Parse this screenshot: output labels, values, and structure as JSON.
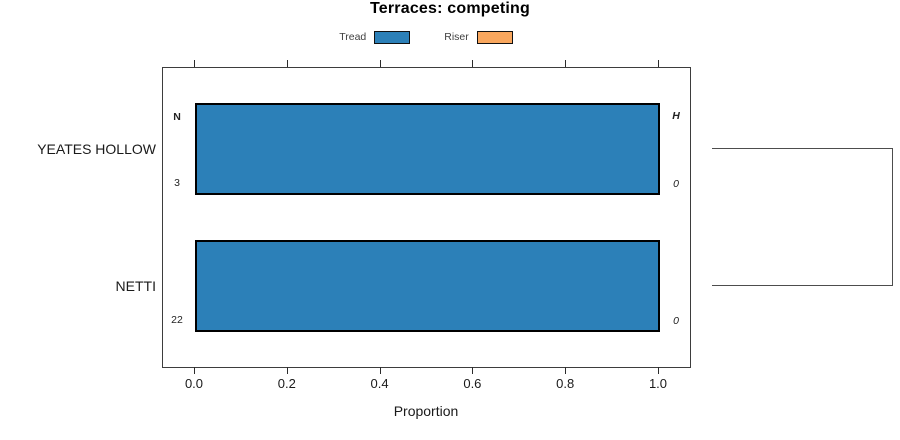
{
  "chart_data": {
    "type": "bar",
    "orientation": "horizontal",
    "title": "Terraces: competing",
    "xlabel": "Proportion",
    "xlim": [
      0,
      1
    ],
    "xticks": [
      0.0,
      0.2,
      0.4,
      0.6,
      0.8,
      1.0
    ],
    "xtick_labels": [
      "0.0",
      "0.2",
      "0.4",
      "0.6",
      "0.8",
      "1.0"
    ],
    "categories": [
      "YEATES HOLLOW",
      "NETTI"
    ],
    "series": [
      {
        "name": "Tread",
        "color": "#2c80b8",
        "values": [
          1.0,
          1.0
        ]
      },
      {
        "name": "Riser",
        "color": "#f9a75e",
        "values": [
          0.0,
          0.0
        ]
      }
    ],
    "legend": {
      "position": "top",
      "items": [
        {
          "label": "Tread",
          "color": "#2c80b8"
        },
        {
          "label": "Riser",
          "color": "#f9a75e"
        }
      ]
    },
    "count_columns": {
      "left_header": "N",
      "right_header": "H",
      "left_values": [
        "3",
        "22"
      ],
      "right_values": [
        "0",
        "0"
      ]
    },
    "grid": false,
    "frame": true,
    "bracket": {
      "side": "right",
      "connects": [
        "YEATES HOLLOW",
        "NETTI"
      ]
    }
  },
  "colors": {
    "tread": "#2c80b8",
    "riser": "#f9a75e",
    "frame": "#3d3d3d",
    "bracket": "#4d4d4d",
    "text": "#1a1a1a"
  }
}
